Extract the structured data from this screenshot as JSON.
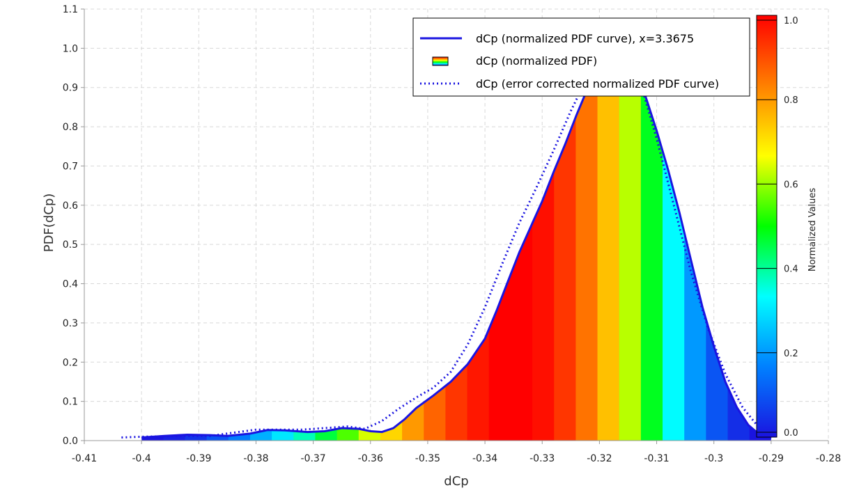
{
  "chart_data": {
    "type": "area",
    "xlabel": "dCp",
    "ylabel": "PDF(dCp)",
    "xlim": [
      -0.41,
      -0.28
    ],
    "ylim": [
      0.0,
      1.1
    ],
    "x_ticks": [
      -0.41,
      -0.4,
      -0.39,
      -0.38,
      -0.37,
      -0.36,
      -0.35,
      -0.34,
      -0.33,
      -0.32,
      -0.31,
      -0.3,
      -0.29,
      -0.28
    ],
    "x_tick_labels": [
      "-0.41",
      "-0.4",
      "-0.39",
      "-0.38",
      "-0.37",
      "-0.36",
      "-0.35",
      "-0.34",
      "-0.33",
      "-0.32",
      "-0.31",
      "-0.3",
      "-0.29",
      "-0.28"
    ],
    "y_ticks": [
      0.0,
      0.1,
      0.2,
      0.3,
      0.4,
      0.5,
      0.6,
      0.7,
      0.8,
      0.9,
      1.0,
      1.1
    ],
    "y_tick_labels": [
      "0.0",
      "0.1",
      "0.2",
      "0.3",
      "0.4",
      "0.5",
      "0.6",
      "0.7",
      "0.8",
      "0.9",
      "1.0",
      "1.1"
    ],
    "grid": true,
    "legend_position": "top-right",
    "series": [
      {
        "name": "dCp (normalized PDF curve), x=3.3675",
        "style": "solid",
        "color": "#1a14e0",
        "x": [
          -0.4,
          -0.396,
          -0.392,
          -0.388,
          -0.385,
          -0.381,
          -0.378,
          -0.375,
          -0.371,
          -0.368,
          -0.365,
          -0.362,
          -0.36,
          -0.358,
          -0.356,
          -0.354,
          -0.352,
          -0.349,
          -0.346,
          -0.343,
          -0.34,
          -0.338,
          -0.336,
          -0.334,
          -0.332,
          -0.33,
          -0.328,
          -0.326,
          -0.324,
          -0.322,
          -0.32,
          -0.318,
          -0.316,
          -0.314,
          -0.312,
          -0.31,
          -0.308,
          -0.306,
          -0.304,
          -0.302,
          -0.3,
          -0.298,
          -0.296,
          -0.294,
          -0.292,
          -0.29
        ],
        "y": [
          0.008,
          0.012,
          0.015,
          0.014,
          0.012,
          0.018,
          0.027,
          0.026,
          0.022,
          0.024,
          0.032,
          0.03,
          0.024,
          0.022,
          0.032,
          0.055,
          0.083,
          0.115,
          0.15,
          0.195,
          0.26,
          0.33,
          0.405,
          0.48,
          0.545,
          0.61,
          0.685,
          0.755,
          0.83,
          0.9,
          0.95,
          0.975,
          0.975,
          0.94,
          0.88,
          0.79,
          0.69,
          0.58,
          0.46,
          0.34,
          0.24,
          0.15,
          0.085,
          0.04,
          0.015,
          0.005
        ]
      },
      {
        "name": "dCp (normalized PDF)",
        "style": "gradient-fill"
      },
      {
        "name": "dCp (error corrected normalized PDF curve)",
        "style": "dotted",
        "color": "#1a14e0",
        "x": [
          -0.4035,
          -0.4,
          -0.396,
          -0.392,
          -0.388,
          -0.384,
          -0.38,
          -0.376,
          -0.372,
          -0.368,
          -0.364,
          -0.361,
          -0.358,
          -0.355,
          -0.352,
          -0.349,
          -0.346,
          -0.343,
          -0.34,
          -0.337,
          -0.334,
          -0.331,
          -0.328,
          -0.325,
          -0.322,
          -0.319,
          -0.316,
          -0.313,
          -0.31,
          -0.307,
          -0.304,
          -0.301,
          -0.298,
          -0.295,
          -0.2925,
          -0.29
        ],
        "y": [
          0.008,
          0.01,
          0.011,
          0.012,
          0.012,
          0.02,
          0.028,
          0.028,
          0.028,
          0.032,
          0.036,
          0.03,
          0.05,
          0.082,
          0.11,
          0.135,
          0.175,
          0.245,
          0.34,
          0.45,
          0.555,
          0.645,
          0.74,
          0.84,
          0.93,
          0.985,
          0.99,
          0.92,
          0.77,
          0.6,
          0.43,
          0.285,
          0.17,
          0.085,
          0.04,
          0.012
        ]
      }
    ],
    "colorbar": {
      "label": "Normalized Values",
      "range": [
        0.0,
        1.0
      ],
      "ticks": [
        0.0,
        0.2,
        0.4,
        0.6,
        0.8,
        1.0
      ],
      "tick_labels": [
        "0.0",
        "0.2",
        "0.4",
        "0.6",
        "0.8",
        "1.0"
      ],
      "colormap": "jet",
      "stops": [
        "#1a14e0",
        "#0080ff",
        "#00ffff",
        "#00ff00",
        "#ffff00",
        "#ff8000",
        "#ff0000"
      ]
    },
    "fill_colormap": {
      "description": "vertical bands colored by normalized PDF value",
      "band_values": [
        0.0,
        0.02,
        0.05,
        0.1,
        0.16,
        0.23,
        0.3,
        0.38,
        0.46,
        0.55,
        0.64,
        0.72,
        0.8,
        0.87,
        0.93,
        0.97,
        1.0,
        1.0,
        0.98,
        0.93,
        0.85,
        0.75,
        0.62,
        0.48,
        0.33,
        0.2,
        0.1,
        0.04,
        0.0
      ]
    }
  }
}
